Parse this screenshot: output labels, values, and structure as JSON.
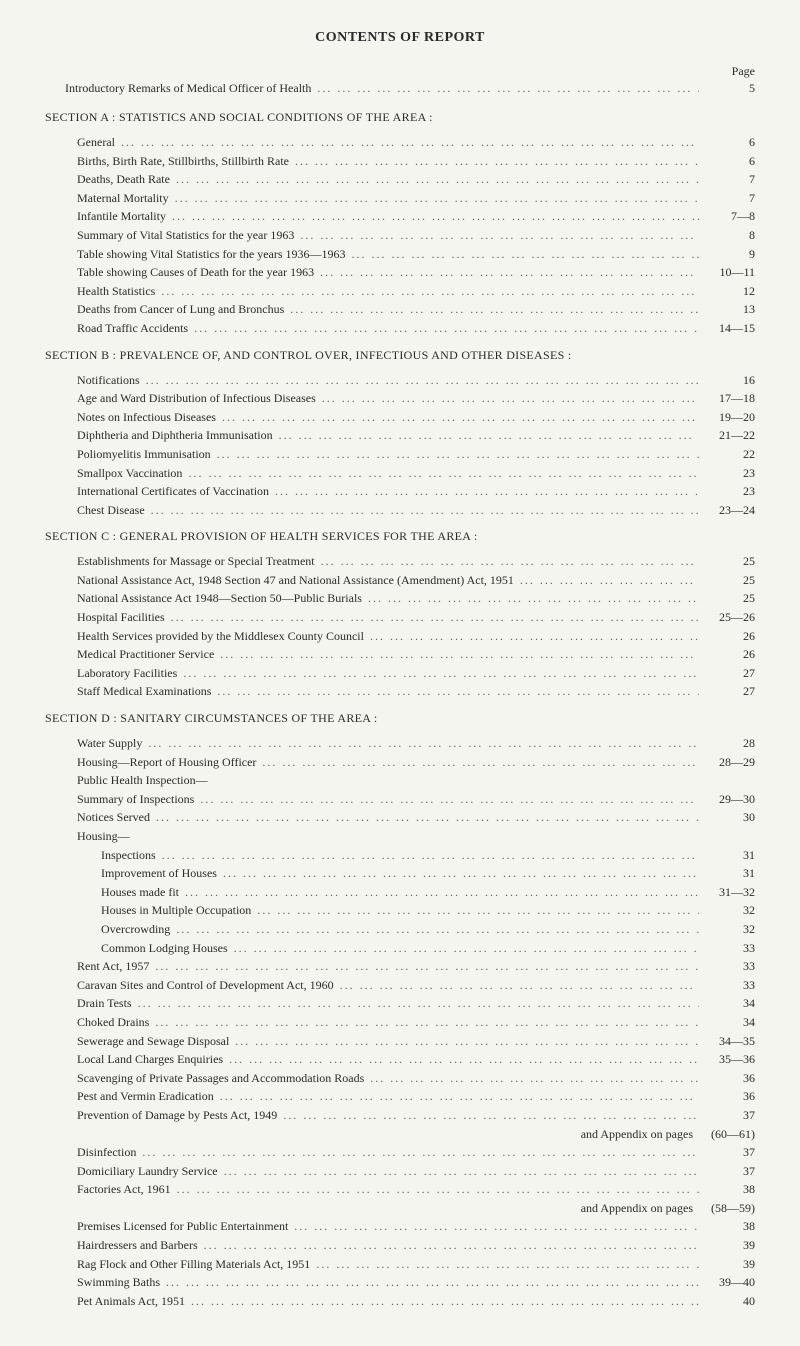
{
  "title": "CONTENTS OF REPORT",
  "page_label": "Page",
  "intro": {
    "label": "Introductory Remarks of Medical Officer of Health",
    "page": "5"
  },
  "sections": [
    {
      "heading": "SECTION A : STATISTICS AND SOCIAL CONDITIONS OF THE AREA :",
      "entries": [
        {
          "label": "General",
          "page": "6"
        },
        {
          "label": "Births, Birth Rate, Stillbirths, Stillbirth Rate",
          "page": "6"
        },
        {
          "label": "Deaths, Death Rate",
          "page": "7"
        },
        {
          "label": "Maternal Mortality",
          "page": "7"
        },
        {
          "label": "Infantile Mortality",
          "page": "7—8"
        },
        {
          "label": "Summary of Vital Statistics for the year 1963",
          "page": "8"
        },
        {
          "label": "Table showing Vital Statistics for the years 1936—1963",
          "page": "9"
        },
        {
          "label": "Table showing Causes of Death for the year 1963",
          "page": "10—11"
        },
        {
          "label": "Health Statistics",
          "page": "12"
        },
        {
          "label": "Deaths from Cancer of Lung and Bronchus",
          "page": "13"
        },
        {
          "label": "Road Traffic Accidents",
          "page": "14—15"
        }
      ]
    },
    {
      "heading": "SECTION B : PREVALENCE OF, AND CONTROL OVER, INFECTIOUS AND OTHER DISEASES :",
      "entries": [
        {
          "label": "Notifications",
          "page": "16"
        },
        {
          "label": "Age and Ward Distribution of Infectious Diseases",
          "page": "17—18"
        },
        {
          "label": "Notes on Infectious Diseases",
          "page": "19—20"
        },
        {
          "label": "Diphtheria and Diphtheria Immunisation",
          "page": "21—22"
        },
        {
          "label": "Poliomyelitis Immunisation",
          "page": "22"
        },
        {
          "label": "Smallpox Vaccination",
          "page": "23"
        },
        {
          "label": "International Certificates of Vaccination",
          "page": "23"
        },
        {
          "label": "Chest Disease",
          "page": "23—24"
        }
      ]
    },
    {
      "heading": "SECTION C : GENERAL PROVISION OF HEALTH SERVICES FOR THE AREA :",
      "entries": [
        {
          "label": "Establishments for Massage or Special Treatment",
          "page": "25"
        },
        {
          "label": "National Assistance Act, 1948 Section 47 and National Assistance (Amendment) Act, 1951",
          "page": "25"
        },
        {
          "label": "National Assistance Act 1948—Section 50—Public Burials",
          "page": "25"
        },
        {
          "label": "Hospital Facilities",
          "page": "25—26"
        },
        {
          "label": "Health Services provided by the Middlesex County Council",
          "page": "26"
        },
        {
          "label": "Medical Practitioner Service",
          "page": "26"
        },
        {
          "label": "Laboratory Facilities",
          "page": "27"
        },
        {
          "label": "Staff Medical Examinations",
          "page": "27"
        }
      ]
    },
    {
      "heading": "SECTION D : SANITARY CIRCUMSTANCES OF THE AREA :",
      "entries": [
        {
          "label": "Water Supply",
          "page": "28"
        },
        {
          "label": "Housing—Report of Housing Officer",
          "page": "28—29"
        },
        {
          "label": "Public Health Inspection—",
          "page": ""
        },
        {
          "label": "Summary of Inspections",
          "page": "29—30"
        },
        {
          "label": "Notices Served",
          "page": "30"
        },
        {
          "label": "Housing—",
          "page": ""
        },
        {
          "label": "Inspections",
          "page": "31",
          "indent": true
        },
        {
          "label": "Improvement of Houses",
          "page": "31",
          "indent": true
        },
        {
          "label": "Houses made fit",
          "page": "31—32",
          "indent": true
        },
        {
          "label": "Houses in Multiple Occupation",
          "page": "32",
          "indent": true
        },
        {
          "label": "Overcrowding",
          "page": "32",
          "indent": true
        },
        {
          "label": "Common Lodging Houses",
          "page": "33",
          "indent": true
        },
        {
          "label": "Rent Act, 1957",
          "page": "33"
        },
        {
          "label": "Caravan Sites and Control of Development Act, 1960",
          "page": "33"
        },
        {
          "label": "Drain Tests",
          "page": "34"
        },
        {
          "label": "Choked Drains",
          "page": "34"
        },
        {
          "label": "Sewerage and Sewage Disposal",
          "page": "34—35"
        },
        {
          "label": "Local Land Charges Enquiries",
          "page": "35—36"
        },
        {
          "label": "Scavenging of Private Passages and Accommodation Roads",
          "page": "36"
        },
        {
          "label": "Pest and Vermin Eradication",
          "page": "36"
        },
        {
          "label": "Prevention of Damage by Pests Act, 1949",
          "page": "37"
        },
        {
          "label": "",
          "page": "(60—61)",
          "appendix": "and Appendix on pages"
        },
        {
          "label": "Disinfection",
          "page": "37"
        },
        {
          "label": "Domiciliary Laundry Service",
          "page": "37"
        },
        {
          "label": "Factories Act, 1961",
          "page": "38"
        },
        {
          "label": "",
          "page": "(58—59)",
          "appendix": "and Appendix on pages"
        },
        {
          "label": "Premises Licensed for Public Entertainment",
          "page": "38"
        },
        {
          "label": "Hairdressers and Barbers",
          "page": "39"
        },
        {
          "label": "Rag Flock and Other Filling Materials Act, 1951",
          "page": "39"
        },
        {
          "label": "Swimming Baths",
          "page": "39—40"
        },
        {
          "label": "Pet Animals Act, 1951",
          "page": "40"
        }
      ]
    }
  ],
  "dot_fill": "... ... ... ... ... ... ... ... ... ... ... ... ... ... ... ... ... ... ... ... ... ... ... ... ... ... ... ... ... ..."
}
